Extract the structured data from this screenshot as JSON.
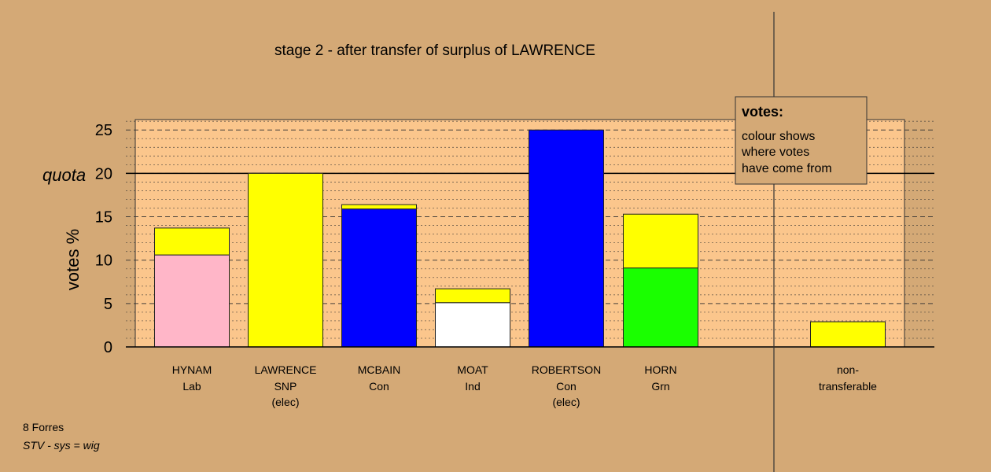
{
  "chart_data": {
    "type": "bar",
    "title": "stage 2 - after transfer of surplus of LAWRENCE",
    "ylabel": "votes %",
    "quota_label": "quota",
    "quota": 20,
    "ylim": [
      0,
      26.2
    ],
    "yticks": [
      0,
      5,
      10,
      15,
      20,
      25
    ],
    "grid": true,
    "colors": {
      "background": "#d4a976",
      "plot_background": "#fbc68c",
      "yellow": "#ffff00",
      "pink": "#ffb6c8",
      "blue": "#0000ff",
      "white": "#ffffff",
      "green": "#1aff00"
    },
    "candidates": [
      {
        "name": "HYNAM",
        "party": "Lab",
        "status": "",
        "segments": [
          {
            "value": 10.6,
            "color": "#ffb6c8"
          },
          {
            "value": 3.1,
            "color": "#ffff00"
          }
        ]
      },
      {
        "name": "LAWRENCE",
        "party": "SNP",
        "status": "(elec)",
        "segments": [
          {
            "value": 20.0,
            "color": "#ffff00"
          }
        ]
      },
      {
        "name": "MCBAIN",
        "party": "Con",
        "status": "",
        "segments": [
          {
            "value": 15.9,
            "color": "#0000ff"
          },
          {
            "value": 0.5,
            "color": "#ffff00"
          }
        ]
      },
      {
        "name": "MOAT",
        "party": "Ind",
        "status": "",
        "segments": [
          {
            "value": 5.1,
            "color": "#ffffff"
          },
          {
            "value": 1.6,
            "color": "#ffff00"
          }
        ]
      },
      {
        "name": "ROBERTSON",
        "party": "Con",
        "status": "(elec)",
        "segments": [
          {
            "value": 25.0,
            "color": "#0000ff"
          }
        ]
      },
      {
        "name": "HORN",
        "party": "Grn",
        "status": "",
        "segments": [
          {
            "value": 9.1,
            "color": "#1aff00"
          },
          {
            "value": 6.2,
            "color": "#ffff00"
          }
        ]
      }
    ],
    "non_transferable": {
      "label_line1": "non-",
      "label_line2": "transferable",
      "segments": [
        {
          "value": 2.9,
          "color": "#ffff00"
        }
      ]
    },
    "legend": {
      "title": "votes:",
      "lines": [
        "colour shows",
        "where votes",
        "have come from"
      ],
      "placement": "top-right"
    }
  },
  "footer": {
    "ward": "8 Forres",
    "system": "STV - sys = wig"
  }
}
